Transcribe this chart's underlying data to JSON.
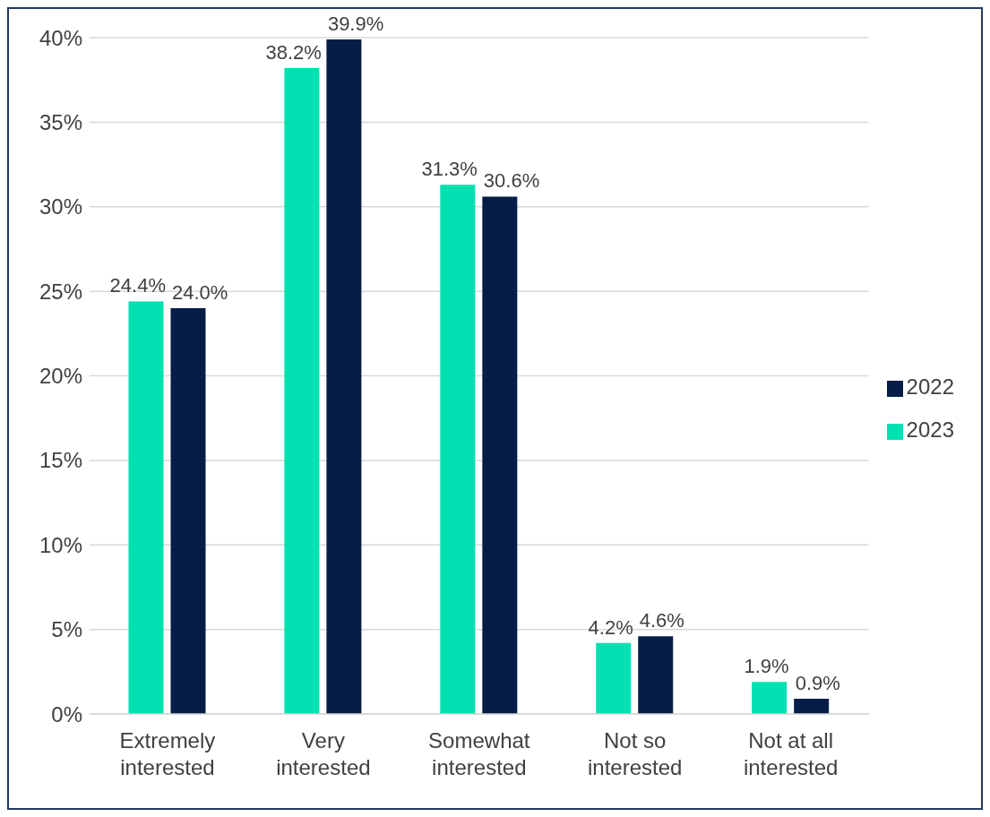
{
  "chart_data": {
    "type": "bar",
    "categories": [
      "Extremely interested",
      "Very interested",
      "Somewhat interested",
      "Not so interested",
      "Not at all interested"
    ],
    "series": [
      {
        "name": "2023",
        "color": "#00e0b0",
        "values": [
          24.4,
          38.2,
          31.3,
          4.2,
          1.9
        ],
        "value_labels": [
          "24.4%",
          "38.2%",
          "31.3%",
          "4.2%",
          "1.9%"
        ]
      },
      {
        "name": "2022",
        "color": "#061d47",
        "values": [
          24.0,
          39.9,
          30.6,
          4.6,
          0.9
        ],
        "value_labels": [
          "24.0%",
          "39.9%",
          "30.6%",
          "4.6%",
          "0.9%"
        ]
      }
    ],
    "ylim": [
      0,
      40
    ],
    "yticks": [
      {
        "value": 0,
        "label": "0%"
      },
      {
        "value": 5,
        "label": "5%"
      },
      {
        "value": 10,
        "label": "10%"
      },
      {
        "value": 15,
        "label": "15%"
      },
      {
        "value": 20,
        "label": "20%"
      },
      {
        "value": 25,
        "label": "25%"
      },
      {
        "value": 30,
        "label": "30%"
      },
      {
        "value": 35,
        "label": "35%"
      },
      {
        "value": 40,
        "label": "40%"
      }
    ],
    "grid": "y",
    "legend": "right"
  }
}
